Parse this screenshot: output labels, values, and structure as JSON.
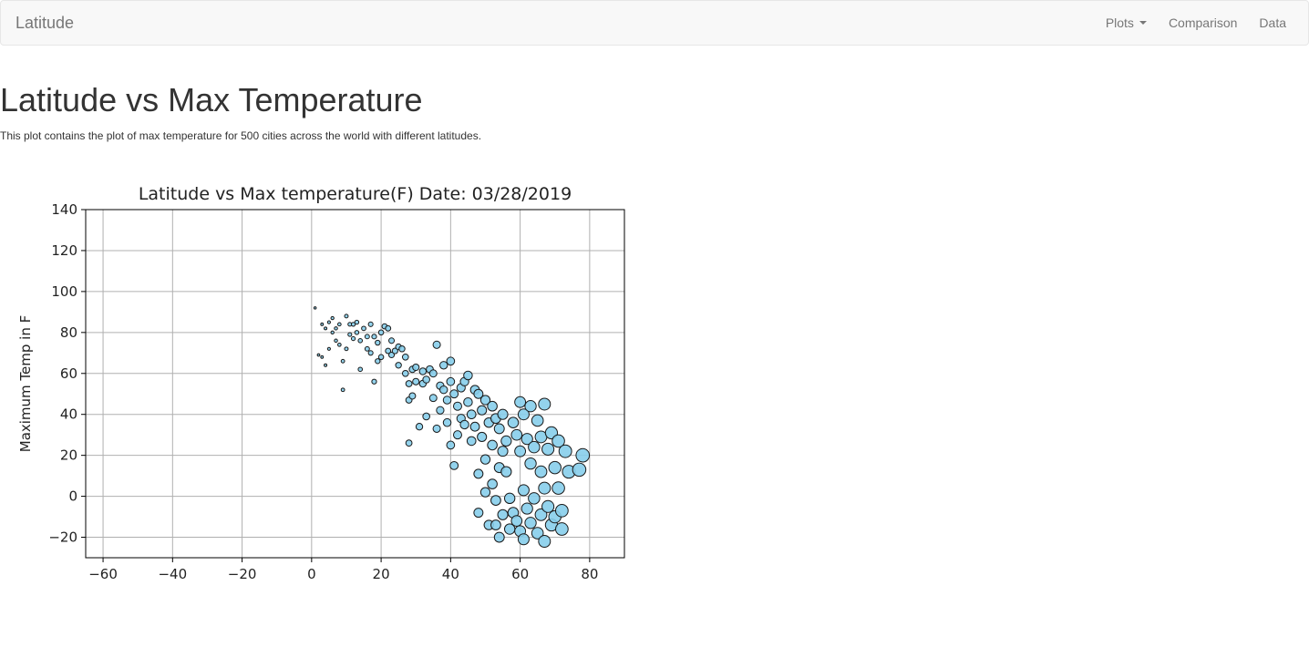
{
  "navbar": {
    "brand": "Latitude",
    "items": [
      {
        "label": "Plots",
        "dropdown": true
      },
      {
        "label": "Comparison",
        "dropdown": false
      },
      {
        "label": "Data",
        "dropdown": false
      }
    ]
  },
  "main": {
    "title": "Latitude vs Max Temperature",
    "description": "This plot contains the plot of max temperature for 500 cities across the world with different latitudes."
  },
  "colors": {
    "marker_fill": "#87ceeb",
    "marker_edge": "#1a1a1a"
  },
  "chart_data": {
    "type": "scatter",
    "title": "Latitude vs Max temperature(F) Date: 03/28/2019",
    "xlabel": "",
    "ylabel": "Maximum Temp in F",
    "xlim": [
      -65,
      90
    ],
    "ylim": [
      -30,
      140
    ],
    "xticks": [
      -60,
      -40,
      -20,
      0,
      20,
      40,
      60,
      80
    ],
    "yticks": [
      -20,
      0,
      20,
      40,
      60,
      80,
      100,
      120,
      140
    ],
    "grid": true,
    "legend": "none",
    "points": [
      [
        1,
        92
      ],
      [
        2,
        69
      ],
      [
        3,
        68
      ],
      [
        3,
        84
      ],
      [
        4,
        82
      ],
      [
        4,
        64
      ],
      [
        5,
        72
      ],
      [
        5,
        85
      ],
      [
        6,
        87
      ],
      [
        6,
        80
      ],
      [
        7,
        82
      ],
      [
        7,
        76
      ],
      [
        8,
        74
      ],
      [
        8,
        84
      ],
      [
        9,
        52
      ],
      [
        9,
        66
      ],
      [
        10,
        88
      ],
      [
        10,
        72
      ],
      [
        11,
        79
      ],
      [
        11,
        84
      ],
      [
        12,
        84
      ],
      [
        12,
        77
      ],
      [
        13,
        80
      ],
      [
        13,
        85
      ],
      [
        14,
        62
      ],
      [
        14,
        76
      ],
      [
        15,
        82
      ],
      [
        16,
        78
      ],
      [
        16,
        72
      ],
      [
        17,
        84
      ],
      [
        17,
        70
      ],
      [
        18,
        78
      ],
      [
        18,
        56
      ],
      [
        19,
        75
      ],
      [
        19,
        66
      ],
      [
        20,
        80
      ],
      [
        20,
        68
      ],
      [
        21,
        83
      ],
      [
        22,
        82
      ],
      [
        22,
        71
      ],
      [
        23,
        76
      ],
      [
        23,
        69
      ],
      [
        24,
        71
      ],
      [
        25,
        64
      ],
      [
        25,
        73
      ],
      [
        26,
        72
      ],
      [
        27,
        68
      ],
      [
        27,
        60
      ],
      [
        28,
        55
      ],
      [
        28,
        47
      ],
      [
        28,
        26
      ],
      [
        29,
        62
      ],
      [
        29,
        49
      ],
      [
        30,
        56
      ],
      [
        30,
        63
      ],
      [
        31,
        34
      ],
      [
        32,
        61
      ],
      [
        32,
        55
      ],
      [
        33,
        39
      ],
      [
        33,
        57
      ],
      [
        34,
        62
      ],
      [
        35,
        48
      ],
      [
        35,
        60
      ],
      [
        36,
        74
      ],
      [
        36,
        33
      ],
      [
        37,
        54
      ],
      [
        37,
        42
      ],
      [
        38,
        64
      ],
      [
        38,
        52
      ],
      [
        39,
        36
      ],
      [
        39,
        47
      ],
      [
        40,
        66
      ],
      [
        40,
        56
      ],
      [
        40,
        25
      ],
      [
        41,
        50
      ],
      [
        41,
        15
      ],
      [
        42,
        44
      ],
      [
        42,
        30
      ],
      [
        43,
        53
      ],
      [
        43,
        38
      ],
      [
        44,
        56
      ],
      [
        44,
        35
      ],
      [
        45,
        59
      ],
      [
        45,
        46
      ],
      [
        46,
        40
      ],
      [
        46,
        27
      ],
      [
        47,
        52
      ],
      [
        47,
        34
      ],
      [
        48,
        50
      ],
      [
        48,
        11
      ],
      [
        48,
        -8
      ],
      [
        49,
        42
      ],
      [
        49,
        29
      ],
      [
        50,
        47
      ],
      [
        50,
        18
      ],
      [
        50,
        2
      ],
      [
        51,
        36
      ],
      [
        51,
        -14
      ],
      [
        52,
        44
      ],
      [
        52,
        25
      ],
      [
        52,
        6
      ],
      [
        53,
        38
      ],
      [
        53,
        -2
      ],
      [
        53,
        -14
      ],
      [
        54,
        33
      ],
      [
        54,
        14
      ],
      [
        54,
        -20
      ],
      [
        55,
        40
      ],
      [
        55,
        22
      ],
      [
        55,
        -9
      ],
      [
        56,
        27
      ],
      [
        56,
        12
      ],
      [
        57,
        -1
      ],
      [
        57,
        -16
      ],
      [
        58,
        36
      ],
      [
        58,
        -8
      ],
      [
        59,
        30
      ],
      [
        59,
        -12
      ],
      [
        60,
        46
      ],
      [
        60,
        22
      ],
      [
        60,
        -17
      ],
      [
        61,
        40
      ],
      [
        61,
        3
      ],
      [
        61,
        -21
      ],
      [
        62,
        28
      ],
      [
        62,
        -6
      ],
      [
        63,
        44
      ],
      [
        63,
        16
      ],
      [
        63,
        -13
      ],
      [
        64,
        24
      ],
      [
        64,
        -1
      ],
      [
        65,
        37
      ],
      [
        65,
        -18
      ],
      [
        66,
        29
      ],
      [
        66,
        12
      ],
      [
        66,
        -9
      ],
      [
        67,
        45
      ],
      [
        67,
        4
      ],
      [
        67,
        -22
      ],
      [
        68,
        23
      ],
      [
        68,
        -5
      ],
      [
        69,
        31
      ],
      [
        69,
        -14
      ],
      [
        70,
        14
      ],
      [
        70,
        -10
      ],
      [
        71,
        27
      ],
      [
        71,
        4
      ],
      [
        72,
        -7
      ],
      [
        72,
        -16
      ],
      [
        73,
        22
      ],
      [
        74,
        12
      ],
      [
        77,
        13
      ],
      [
        78,
        20
      ]
    ]
  }
}
